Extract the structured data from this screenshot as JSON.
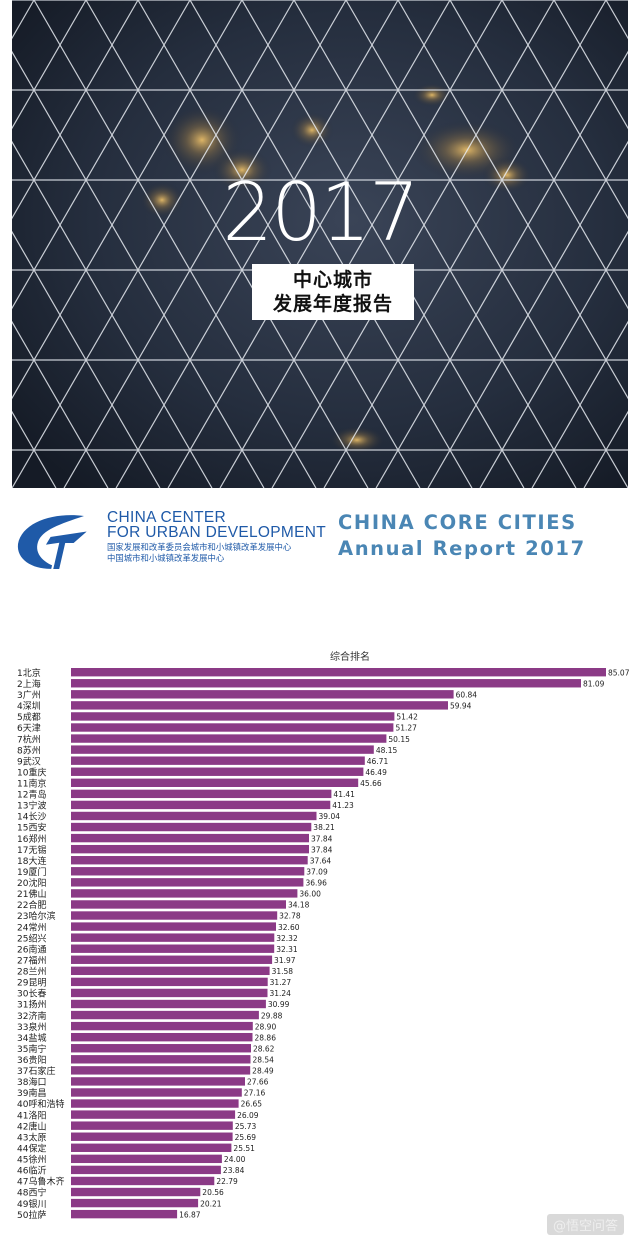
{
  "cover": {
    "year": "2017",
    "title_line1": "中心城市",
    "title_line2": "发展年度报告"
  },
  "banner": {
    "org_en_line1": "CHINA CENTER",
    "org_en_line2": "FOR URBAN DEVELOPMENT",
    "org_cn_line1": "国家发展和改革委员会城市和小城镇改革发展中心",
    "org_cn_line2": "中国城市和小城镇改革发展中心",
    "report_line1": "CHINA CORE CITIES",
    "report_line2": "Annual Report 2017"
  },
  "colors": {
    "bar": "#8b3a86",
    "cover_bg": "#1c2433",
    "brand_blue": "#1f5aa8"
  },
  "chart_data": {
    "type": "bar",
    "orientation": "horizontal",
    "title": "综合排名",
    "categories": [
      "1北京",
      "2上海",
      "3广州",
      "4深圳",
      "5成都",
      "6天津",
      "7杭州",
      "8苏州",
      "9武汉",
      "10重庆",
      "11南京",
      "12青岛",
      "13宁波",
      "14长沙",
      "15西安",
      "16郑州",
      "17无锡",
      "18大连",
      "19厦门",
      "20沈阳",
      "21佛山",
      "22合肥",
      "23哈尔滨",
      "24常州",
      "25绍兴",
      "26南通",
      "27福州",
      "28兰州",
      "29昆明",
      "30长春",
      "31扬州",
      "32济南",
      "33泉州",
      "34盐城",
      "35南宁",
      "36贵阳",
      "37石家庄",
      "38海口",
      "39南昌",
      "40呼和浩特",
      "41洛阳",
      "42唐山",
      "43太原",
      "44保定",
      "45徐州",
      "46临沂",
      "47乌鲁木齐",
      "48西宁",
      "49银川",
      "50拉萨"
    ],
    "values": [
      85.07,
      81.09,
      60.84,
      59.94,
      51.42,
      51.27,
      50.15,
      48.15,
      46.71,
      46.49,
      45.66,
      41.41,
      41.23,
      39.04,
      38.21,
      37.84,
      37.84,
      37.64,
      37.09,
      36.96,
      36.0,
      34.18,
      32.78,
      32.6,
      32.32,
      32.31,
      31.97,
      31.58,
      31.27,
      31.24,
      30.99,
      29.88,
      28.9,
      28.86,
      28.62,
      28.54,
      28.49,
      27.66,
      27.16,
      26.65,
      26.09,
      25.73,
      25.69,
      25.51,
      24.0,
      23.84,
      22.79,
      20.56,
      20.21,
      16.87
    ],
    "value_labels": [
      "85.07",
      "81.09",
      "60.84",
      "59.94",
      "51.42",
      "51.27",
      "50.15",
      "48.15",
      "46.71",
      "46.49",
      "45.66",
      "41.41",
      "41.23",
      "39.04",
      "38.21",
      "37.84",
      "37.84",
      "37.64",
      "37.09",
      "36.96",
      "36.00",
      "34.18",
      "32.78",
      "32.60",
      "32.32",
      "32.31",
      "31.97",
      "31.58",
      "31.27",
      "31.24",
      "30.99",
      "29.88",
      "28.90",
      "28.86",
      "28.62",
      "28.54",
      "28.49",
      "27.66",
      "27.16",
      "26.65",
      "26.09",
      "25.73",
      "25.69",
      "25.51",
      "24.00",
      "23.84",
      "22.79",
      "20.56",
      "20.21",
      "16.87"
    ],
    "grid": false,
    "legend": false
  },
  "watermark": "@悟空问答"
}
